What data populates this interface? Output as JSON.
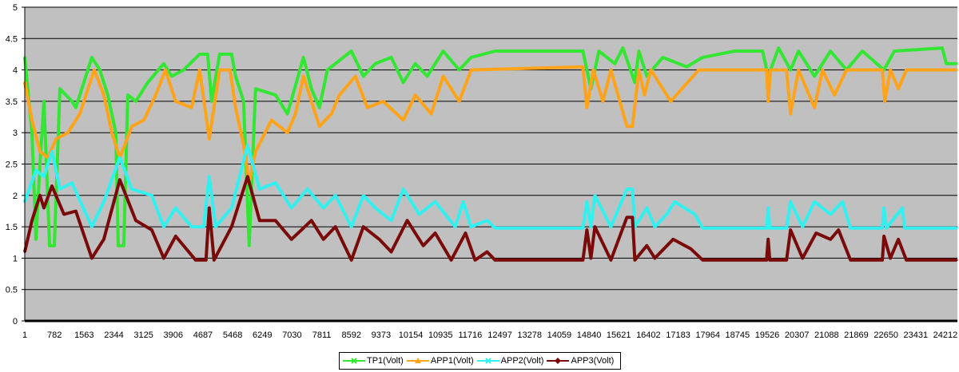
{
  "chart_data": {
    "type": "line",
    "title": "",
    "xlabel": "",
    "ylabel": "",
    "xlim": [
      1,
      24528
    ],
    "ylim": [
      0,
      5
    ],
    "grid": true,
    "legend_position": "bottom",
    "y_ticks": [
      "0",
      "0.5",
      "1",
      "1.5",
      "2",
      "2.5",
      "3",
      "3.5",
      "4",
      "4.5",
      "5"
    ],
    "y_tick_values": [
      0,
      0.5,
      1,
      1.5,
      2,
      2.5,
      3,
      3.5,
      4,
      4.5,
      5
    ],
    "x_ticks": [
      "1",
      "782",
      "1563",
      "2344",
      "3125",
      "3906",
      "4687",
      "5468",
      "6249",
      "7030",
      "7811",
      "8592",
      "9373",
      "10154",
      "10935",
      "11716",
      "12497",
      "13278",
      "14059",
      "14840",
      "15621",
      "16402",
      "17183",
      "17964",
      "18745",
      "19526",
      "20307",
      "21088",
      "21869",
      "22650",
      "23431",
      "24212"
    ],
    "colors": {
      "plot_bg": "#c0c0c0",
      "grid": "#000000"
    },
    "series": [
      {
        "name": "TP1(Volt)",
        "color": "#33e633",
        "marker": "x",
        "points": [
          [
            1,
            4.2
          ],
          [
            190,
            3.0
          ],
          [
            295,
            1.3
          ],
          [
            400,
            2.5
          ],
          [
            505,
            3.5
          ],
          [
            652,
            1.2
          ],
          [
            778,
            1.2
          ],
          [
            925,
            3.7
          ],
          [
            1240,
            3.5
          ],
          [
            1345,
            3.4
          ],
          [
            1765,
            4.2
          ],
          [
            1975,
            4.0
          ],
          [
            2185,
            3.6
          ],
          [
            2395,
            3.0
          ],
          [
            2458,
            1.2
          ],
          [
            2605,
            1.2
          ],
          [
            2710,
            3.6
          ],
          [
            2920,
            3.5
          ],
          [
            3235,
            3.8
          ],
          [
            3655,
            4.1
          ],
          [
            3865,
            3.9
          ],
          [
            4180,
            4.0
          ],
          [
            4600,
            4.25
          ],
          [
            4810,
            4.25
          ],
          [
            4915,
            3.5
          ],
          [
            5125,
            4.25
          ],
          [
            5440,
            4.25
          ],
          [
            5545,
            3.9
          ],
          [
            5755,
            3.5
          ],
          [
            5902,
            1.2
          ],
          [
            6070,
            3.7
          ],
          [
            6595,
            3.6
          ],
          [
            6910,
            3.3
          ],
          [
            7330,
            4.2
          ],
          [
            7540,
            3.7
          ],
          [
            7750,
            3.4
          ],
          [
            7960,
            4.0
          ],
          [
            8590,
            4.3
          ],
          [
            8905,
            3.9
          ],
          [
            9220,
            4.1
          ],
          [
            9640,
            4.2
          ],
          [
            9955,
            3.8
          ],
          [
            10270,
            4.1
          ],
          [
            10585,
            3.9
          ],
          [
            11005,
            4.3
          ],
          [
            11425,
            4.0
          ],
          [
            11740,
            4.2
          ],
          [
            12370,
            4.3
          ],
          [
            14680,
            4.3
          ],
          [
            14890,
            3.7
          ],
          [
            15100,
            4.3
          ],
          [
            15520,
            4.1
          ],
          [
            15730,
            4.35
          ],
          [
            16045,
            3.8
          ],
          [
            16150,
            4.3
          ],
          [
            16360,
            3.9
          ],
          [
            16780,
            4.2
          ],
          [
            17410,
            4.05
          ],
          [
            17830,
            4.2
          ],
          [
            18670,
            4.3
          ],
          [
            19405,
            4.3
          ],
          [
            19552,
            3.9
          ],
          [
            19825,
            4.35
          ],
          [
            20140,
            4.0
          ],
          [
            20350,
            4.3
          ],
          [
            20770,
            3.9
          ],
          [
            21190,
            4.3
          ],
          [
            21610,
            4.0
          ],
          [
            22030,
            4.3
          ],
          [
            22597,
            4.0
          ],
          [
            22870,
            4.3
          ],
          [
            24130,
            4.35
          ],
          [
            24235,
            4.1
          ],
          [
            24508,
            4.1
          ]
        ]
      },
      {
        "name": "APP1(Volt)",
        "color": "#ffa31a",
        "marker": "triangle",
        "points": [
          [
            1,
            3.8
          ],
          [
            190,
            3.2
          ],
          [
            400,
            2.7
          ],
          [
            610,
            2.6
          ],
          [
            820,
            2.9
          ],
          [
            1135,
            3.0
          ],
          [
            1450,
            3.3
          ],
          [
            1828,
            4.0
          ],
          [
            2080,
            3.6
          ],
          [
            2290,
            3.0
          ],
          [
            2500,
            2.6
          ],
          [
            2815,
            3.1
          ],
          [
            3130,
            3.2
          ],
          [
            3445,
            3.6
          ],
          [
            3697,
            4.0
          ],
          [
            3970,
            3.5
          ],
          [
            4390,
            3.4
          ],
          [
            4600,
            4.0
          ],
          [
            4852,
            2.9
          ],
          [
            5125,
            4.0
          ],
          [
            5398,
            4.0
          ],
          [
            5545,
            3.4
          ],
          [
            5755,
            2.8
          ],
          [
            5902,
            2.2
          ],
          [
            6070,
            2.7
          ],
          [
            6490,
            3.2
          ],
          [
            6910,
            3.0
          ],
          [
            7120,
            3.3
          ],
          [
            7330,
            3.9
          ],
          [
            7750,
            3.1
          ],
          [
            8065,
            3.3
          ],
          [
            8275,
            3.6
          ],
          [
            8695,
            3.9
          ],
          [
            9010,
            3.4
          ],
          [
            9430,
            3.5
          ],
          [
            9955,
            3.2
          ],
          [
            10270,
            3.6
          ],
          [
            10690,
            3.3
          ],
          [
            11005,
            3.9
          ],
          [
            11425,
            3.5
          ],
          [
            11740,
            4.0
          ],
          [
            14680,
            4.05
          ],
          [
            14785,
            3.4
          ],
          [
            14953,
            4.0
          ],
          [
            15205,
            3.5
          ],
          [
            15415,
            4.0
          ],
          [
            15835,
            3.1
          ],
          [
            15982,
            3.1
          ],
          [
            16150,
            4.0
          ],
          [
            16297,
            3.6
          ],
          [
            16465,
            4.0
          ],
          [
            16990,
            3.5
          ],
          [
            17725,
            4.0
          ],
          [
            19510,
            4.0
          ],
          [
            19552,
            3.5
          ],
          [
            19615,
            4.0
          ],
          [
            20035,
            4.0
          ],
          [
            20140,
            3.3
          ],
          [
            20350,
            4.0
          ],
          [
            20770,
            3.4
          ],
          [
            20980,
            4.0
          ],
          [
            21295,
            3.6
          ],
          [
            21610,
            4.0
          ],
          [
            22555,
            4.0
          ],
          [
            22618,
            3.5
          ],
          [
            22765,
            4.0
          ],
          [
            22975,
            3.7
          ],
          [
            23185,
            4.0
          ],
          [
            24508,
            4.0
          ]
        ]
      },
      {
        "name": "APP2(Volt)",
        "color": "#33f0f0",
        "marker": "x",
        "points": [
          [
            1,
            1.9
          ],
          [
            295,
            2.4
          ],
          [
            505,
            2.3
          ],
          [
            715,
            2.7
          ],
          [
            925,
            2.1
          ],
          [
            1240,
            2.2
          ],
          [
            1765,
            1.5
          ],
          [
            2080,
            1.9
          ],
          [
            2500,
            2.6
          ],
          [
            2815,
            2.1
          ],
          [
            3340,
            2.0
          ],
          [
            3655,
            1.5
          ],
          [
            3970,
            1.8
          ],
          [
            4390,
            1.5
          ],
          [
            4705,
            1.5
          ],
          [
            4852,
            2.3
          ],
          [
            5020,
            1.5
          ],
          [
            5440,
            1.8
          ],
          [
            5860,
            2.8
          ],
          [
            6175,
            2.1
          ],
          [
            6595,
            2.2
          ],
          [
            7015,
            1.8
          ],
          [
            7435,
            2.1
          ],
          [
            7855,
            1.8
          ],
          [
            8170,
            2.0
          ],
          [
            8590,
            1.5
          ],
          [
            8905,
            2.0
          ],
          [
            9220,
            1.8
          ],
          [
            9640,
            1.6
          ],
          [
            9955,
            2.1
          ],
          [
            10375,
            1.7
          ],
          [
            10795,
            1.9
          ],
          [
            11320,
            1.5
          ],
          [
            11530,
            1.9
          ],
          [
            11740,
            1.5
          ],
          [
            12160,
            1.6
          ],
          [
            12370,
            1.48
          ],
          [
            14680,
            1.48
          ],
          [
            14785,
            1.9
          ],
          [
            14890,
            1.5
          ],
          [
            14995,
            2.0
          ],
          [
            15415,
            1.5
          ],
          [
            15835,
            2.1
          ],
          [
            15982,
            2.1
          ],
          [
            16045,
            1.5
          ],
          [
            16360,
            1.8
          ],
          [
            16570,
            1.5
          ],
          [
            16885,
            1.7
          ],
          [
            17095,
            1.9
          ],
          [
            17620,
            1.7
          ],
          [
            17830,
            1.48
          ],
          [
            19510,
            1.48
          ],
          [
            19552,
            1.8
          ],
          [
            19594,
            1.48
          ],
          [
            20035,
            1.48
          ],
          [
            20140,
            1.9
          ],
          [
            20455,
            1.5
          ],
          [
            20770,
            1.9
          ],
          [
            21190,
            1.7
          ],
          [
            21505,
            1.9
          ],
          [
            21715,
            1.48
          ],
          [
            22555,
            1.48
          ],
          [
            22597,
            1.8
          ],
          [
            22660,
            1.48
          ],
          [
            23080,
            1.8
          ],
          [
            23143,
            1.48
          ],
          [
            24508,
            1.48
          ]
        ]
      },
      {
        "name": "APP3(Volt)",
        "color": "#7a0a0a",
        "marker": "diamond",
        "points": [
          [
            1,
            1.1
          ],
          [
            190,
            1.6
          ],
          [
            400,
            2.0
          ],
          [
            505,
            1.8
          ],
          [
            715,
            2.15
          ],
          [
            1030,
            1.7
          ],
          [
            1345,
            1.75
          ],
          [
            1765,
            1.0
          ],
          [
            2080,
            1.3
          ],
          [
            2500,
            2.25
          ],
          [
            2920,
            1.6
          ],
          [
            3340,
            1.45
          ],
          [
            3655,
            1.0
          ],
          [
            3970,
            1.35
          ],
          [
            4495,
            0.97
          ],
          [
            4768,
            0.97
          ],
          [
            4852,
            1.8
          ],
          [
            4978,
            0.97
          ],
          [
            5440,
            1.5
          ],
          [
            5860,
            2.3
          ],
          [
            6175,
            1.6
          ],
          [
            6595,
            1.6
          ],
          [
            7015,
            1.3
          ],
          [
            7540,
            1.6
          ],
          [
            7855,
            1.3
          ],
          [
            8170,
            1.5
          ],
          [
            8590,
            0.97
          ],
          [
            8905,
            1.5
          ],
          [
            9325,
            1.3
          ],
          [
            9640,
            1.1
          ],
          [
            10060,
            1.6
          ],
          [
            10480,
            1.2
          ],
          [
            10795,
            1.4
          ],
          [
            11215,
            0.97
          ],
          [
            11593,
            1.4
          ],
          [
            11845,
            0.97
          ],
          [
            12160,
            1.1
          ],
          [
            12370,
            0.97
          ],
          [
            14680,
            0.97
          ],
          [
            14785,
            1.45
          ],
          [
            14890,
            1.0
          ],
          [
            14995,
            1.5
          ],
          [
            15415,
            0.97
          ],
          [
            15835,
            1.65
          ],
          [
            15982,
            1.65
          ],
          [
            16045,
            0.97
          ],
          [
            16360,
            1.2
          ],
          [
            16570,
            1.0
          ],
          [
            17053,
            1.3
          ],
          [
            17515,
            1.15
          ],
          [
            17830,
            0.97
          ],
          [
            19510,
            0.97
          ],
          [
            19552,
            1.3
          ],
          [
            19594,
            0.97
          ],
          [
            20035,
            0.97
          ],
          [
            20140,
            1.45
          ],
          [
            20455,
            1.0
          ],
          [
            20812,
            1.4
          ],
          [
            21190,
            1.3
          ],
          [
            21400,
            1.45
          ],
          [
            21715,
            0.97
          ],
          [
            22555,
            0.97
          ],
          [
            22597,
            1.35
          ],
          [
            22765,
            1.0
          ],
          [
            22975,
            1.3
          ],
          [
            23185,
            0.97
          ],
          [
            24508,
            0.97
          ]
        ]
      }
    ]
  }
}
